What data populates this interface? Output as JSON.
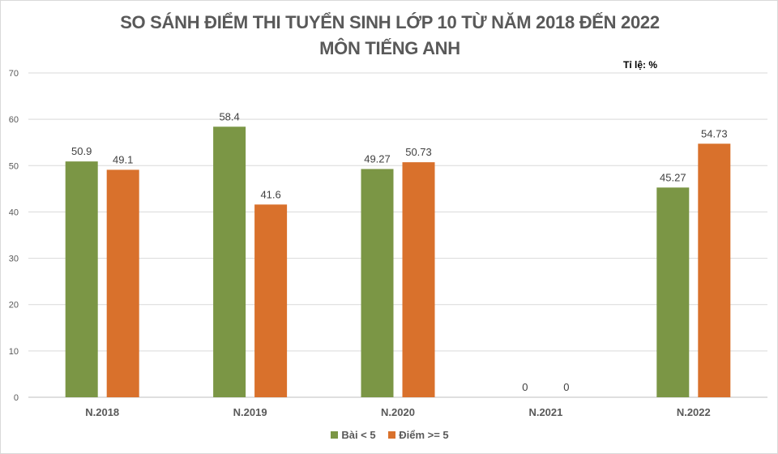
{
  "chart_data": {
    "type": "bar",
    "title": "SO SÁNH ĐIỂM THI TUYỂN SINH LỚP 10 TỪ NĂM 2018 ĐẾN 2022",
    "subtitle": "MÔN TIẾNG ANH",
    "unit_label": "Tỉ lệ: %",
    "categories": [
      "N.2018",
      "N.2019",
      "N.2020",
      "N.2021",
      "N.2022"
    ],
    "series": [
      {
        "name": "Bài < 5",
        "color": "#7b9645",
        "values": [
          50.9,
          58.4,
          49.27,
          0,
          45.27
        ]
      },
      {
        "name": "Điểm >= 5",
        "color": "#d9712c",
        "values": [
          49.1,
          41.6,
          50.73,
          0,
          54.73
        ]
      }
    ],
    "ylim": [
      0,
      70
    ],
    "yticks": [
      0,
      10,
      20,
      30,
      40,
      50,
      60,
      70
    ],
    "grid": true,
    "legend": "bottom"
  }
}
